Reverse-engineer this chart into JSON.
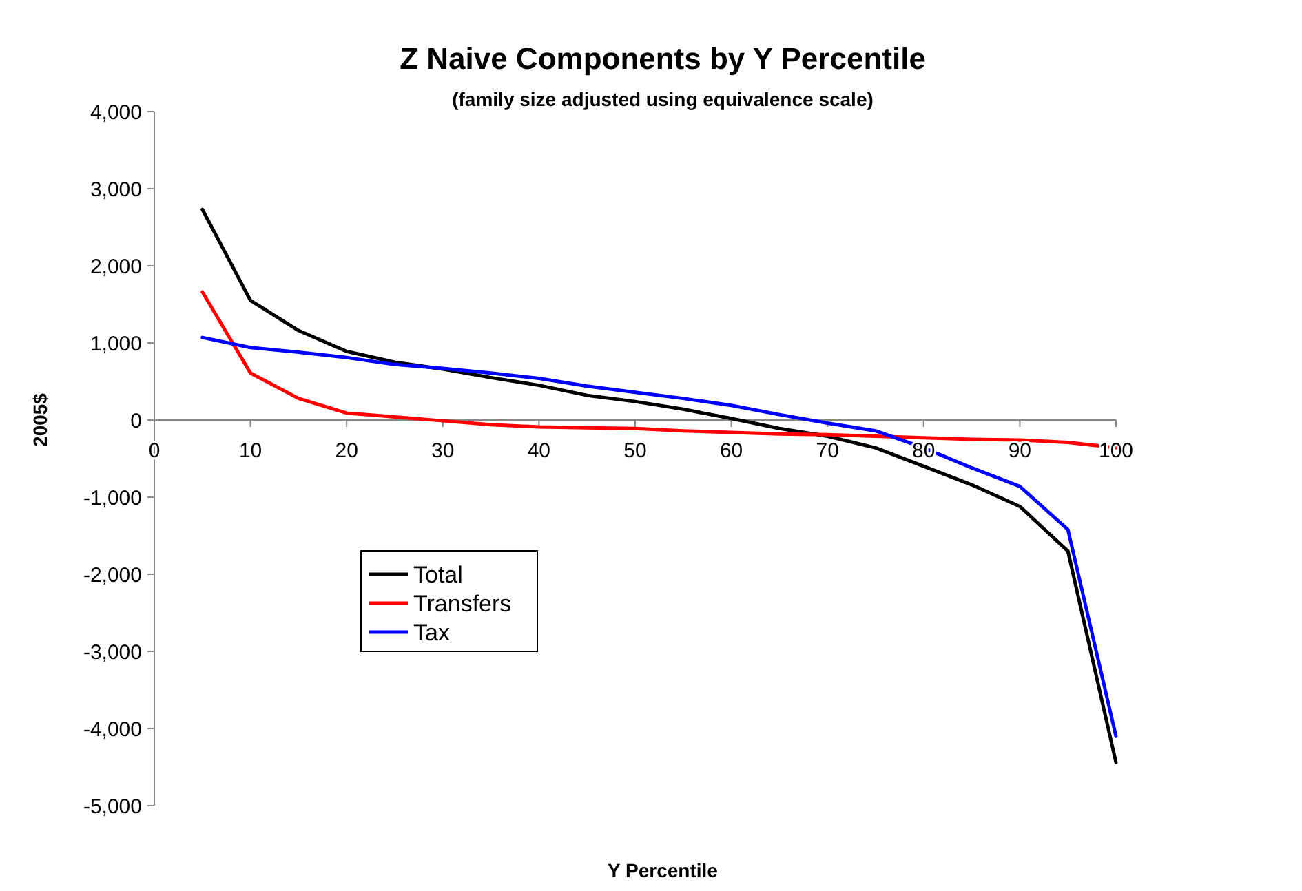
{
  "chart_data": {
    "type": "line",
    "title": "Z Naive Components by Y Percentile",
    "subtitle": "(family size adjusted using equivalence scale)",
    "xlabel": "Y Percentile",
    "ylabel": "2005$",
    "x": [
      5,
      10,
      15,
      20,
      25,
      30,
      35,
      40,
      45,
      50,
      55,
      60,
      65,
      70,
      75,
      80,
      85,
      90,
      95,
      100
    ],
    "series": [
      {
        "name": "Total",
        "color": "#000000",
        "values": [
          2730,
          1550,
          1160,
          890,
          750,
          660,
          550,
          450,
          320,
          240,
          140,
          20,
          -110,
          -210,
          -360,
          -600,
          -840,
          -1120,
          -1700,
          -4440
        ]
      },
      {
        "name": "Transfers",
        "color": "#ff0000",
        "values": [
          1660,
          610,
          280,
          90,
          40,
          -10,
          -60,
          -90,
          -100,
          -110,
          -140,
          -160,
          -180,
          -190,
          -210,
          -230,
          -250,
          -260,
          -290,
          -360
        ]
      },
      {
        "name": "Tax",
        "color": "#0000ff",
        "values": [
          1070,
          940,
          880,
          810,
          720,
          670,
          610,
          540,
          440,
          360,
          280,
          190,
          70,
          -40,
          -140,
          -360,
          -620,
          -860,
          -1420,
          -4100
        ]
      }
    ],
    "xlim": [
      0,
      100
    ],
    "xticks": [
      0,
      10,
      20,
      30,
      40,
      50,
      60,
      70,
      80,
      90,
      100
    ],
    "ylim": [
      -5000,
      4000
    ],
    "yticks": [
      {
        "value": -5000,
        "label": "-5,000"
      },
      {
        "value": -4000,
        "label": "-4,000"
      },
      {
        "value": -3000,
        "label": "-3,000"
      },
      {
        "value": -2000,
        "label": "-2,000"
      },
      {
        "value": -1000,
        "label": "-1,000"
      },
      0,
      {
        "value": 1000,
        "label": "1,000"
      },
      {
        "value": 2000,
        "label": "2,000"
      },
      {
        "value": 3000,
        "label": "3,000"
      },
      {
        "value": 4000,
        "label": "4,000"
      }
    ],
    "grid": false,
    "legend": "left",
    "marker": "none",
    "line_style": "solid"
  }
}
